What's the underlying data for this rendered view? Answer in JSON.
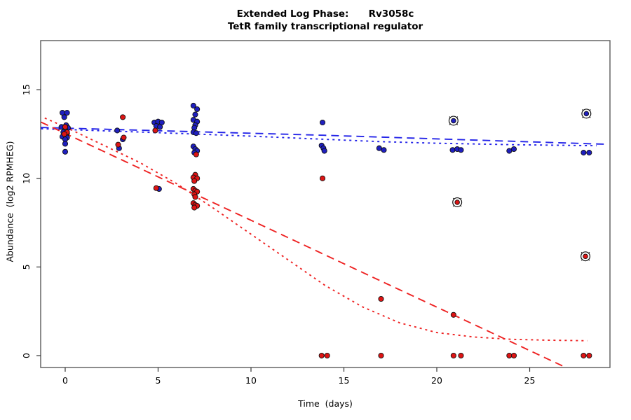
{
  "title": {
    "line1": "Extended Log Phase:      Rv3058c",
    "line2": "TetR family transcriptional regulator"
  },
  "chart_data": {
    "type": "scatter",
    "title": "Extended Log Phase:      Rv3058c",
    "subtitle": "TetR family transcriptional regulator",
    "xlabel": "Time  (days)",
    "ylabel": "Abundance  (log2 RPMHEG)",
    "xlim": [
      -1.32,
      29.32
    ],
    "ylim": [
      -0.67,
      17.77
    ],
    "xticks": [
      0,
      5,
      10,
      15,
      20,
      25
    ],
    "yticks": [
      0,
      5,
      10,
      15
    ],
    "grid": false,
    "legend": "none",
    "colors": {
      "blue_point": "#1f1fbf",
      "red_point": "#dd1414",
      "blue_line": "#2424e8",
      "red_line": "#ee2222",
      "marker_edge": "#111111",
      "box": "#5a5a5a",
      "tick": "#333333",
      "text": "#000000"
    },
    "series": [
      {
        "name": "blue-abundance",
        "marker": "filled-circle",
        "color": "#1f1fbf",
        "points": [
          [
            -0.15,
            13.7
          ],
          [
            0.1,
            13.7
          ],
          [
            -0.05,
            13.45
          ],
          [
            0.05,
            13.0
          ],
          [
            -0.2,
            12.9
          ],
          [
            0.15,
            12.85
          ],
          [
            0,
            12.75
          ],
          [
            -0.1,
            12.6
          ],
          [
            0.1,
            12.55
          ],
          [
            0,
            12.45
          ],
          [
            -0.15,
            12.35
          ],
          [
            0.1,
            12.3
          ],
          [
            0,
            12.2
          ],
          [
            0,
            11.95
          ],
          [
            0,
            11.5
          ],
          [
            2.8,
            12.7
          ],
          [
            3.1,
            12.2
          ],
          [
            2.9,
            11.7
          ],
          [
            4.8,
            13.15
          ],
          [
            5.0,
            13.2
          ],
          [
            5.2,
            13.15
          ],
          [
            4.9,
            12.95
          ],
          [
            5.1,
            12.9
          ],
          [
            5.05,
            9.4
          ],
          [
            6.9,
            14.1
          ],
          [
            7.1,
            13.9
          ],
          [
            7.0,
            13.6
          ],
          [
            6.9,
            13.3
          ],
          [
            7.1,
            13.2
          ],
          [
            7.0,
            13.0
          ],
          [
            6.95,
            12.85
          ],
          [
            6.9,
            12.6
          ],
          [
            7.05,
            12.55
          ],
          [
            6.9,
            11.8
          ],
          [
            7.0,
            11.65
          ],
          [
            7.1,
            11.55
          ],
          [
            6.95,
            11.45
          ],
          [
            13.85,
            13.15
          ],
          [
            13.8,
            11.85
          ],
          [
            13.9,
            11.7
          ],
          [
            13.95,
            11.55
          ],
          [
            16.9,
            11.7
          ],
          [
            17.15,
            11.6
          ],
          [
            20.85,
            11.6
          ],
          [
            21.1,
            11.65
          ],
          [
            21.3,
            11.6
          ],
          [
            23.9,
            11.55
          ],
          [
            24.15,
            11.65
          ],
          [
            27.9,
            11.45
          ],
          [
            28.2,
            11.45
          ]
        ]
      },
      {
        "name": "red-abundance",
        "marker": "filled-circle",
        "color": "#dd1414",
        "points": [
          [
            0,
            12.9
          ],
          [
            0.1,
            12.6
          ],
          [
            -0.05,
            12.5
          ],
          [
            3.1,
            13.45
          ],
          [
            3.15,
            12.3
          ],
          [
            2.85,
            11.9
          ],
          [
            4.85,
            12.7
          ],
          [
            4.9,
            9.45
          ],
          [
            7.05,
            11.35
          ],
          [
            7.0,
            10.2
          ],
          [
            6.9,
            10.05
          ],
          [
            7.1,
            10.0
          ],
          [
            6.95,
            9.85
          ],
          [
            6.9,
            9.4
          ],
          [
            7.0,
            9.3
          ],
          [
            7.1,
            9.25
          ],
          [
            6.95,
            9.1
          ],
          [
            7.0,
            8.95
          ],
          [
            6.9,
            8.6
          ],
          [
            7.0,
            8.5
          ],
          [
            7.1,
            8.45
          ],
          [
            6.95,
            8.35
          ],
          [
            13.85,
            10.0
          ],
          [
            13.8,
            0
          ],
          [
            14.1,
            0
          ],
          [
            17.0,
            3.2
          ],
          [
            17.0,
            0
          ],
          [
            20.9,
            2.3
          ],
          [
            20.9,
            0
          ],
          [
            21.3,
            0
          ],
          [
            23.9,
            0
          ],
          [
            24.15,
            0
          ],
          [
            27.9,
            0
          ],
          [
            28.2,
            0
          ]
        ]
      },
      {
        "name": "blue-flagged",
        "marker": "circled-dot",
        "color": "#1f1fbf",
        "points": [
          [
            20.9,
            13.25
          ],
          [
            28.05,
            13.65
          ]
        ]
      },
      {
        "name": "red-flagged",
        "marker": "circled-dot",
        "color": "#dd1414",
        "points": [
          [
            21.1,
            8.65
          ],
          [
            28.0,
            5.6
          ]
        ]
      }
    ],
    "fit_lines": [
      {
        "name": "blue-linear-fit",
        "color": "#2424e8",
        "dash": "longdash",
        "points": [
          [
            -1.3,
            12.87
          ],
          [
            13.9,
            12.43
          ],
          [
            29.2,
            11.92
          ]
        ]
      },
      {
        "name": "blue-smooth-fit",
        "color": "#2424e8",
        "dash": "dotted",
        "points": [
          [
            -1.3,
            12.8
          ],
          [
            3,
            12.65
          ],
          [
            7,
            12.5
          ],
          [
            10,
            12.38
          ],
          [
            14,
            12.2
          ],
          [
            17,
            12.07
          ],
          [
            20,
            11.98
          ],
          [
            24,
            11.9
          ],
          [
            28.6,
            11.84
          ]
        ]
      },
      {
        "name": "red-linear-fit",
        "color": "#ee2222",
        "dash": "longdash",
        "points": [
          [
            -1.3,
            13.17
          ],
          [
            26.95,
            -0.67
          ]
        ]
      },
      {
        "name": "red-smooth-fit",
        "color": "#ee2222",
        "dash": "dotted",
        "points": [
          [
            -1.1,
            13.4
          ],
          [
            0,
            12.9
          ],
          [
            2,
            11.9
          ],
          [
            4,
            10.9
          ],
          [
            6,
            9.7
          ],
          [
            8,
            8.3
          ],
          [
            10,
            6.85
          ],
          [
            12,
            5.4
          ],
          [
            14,
            3.95
          ],
          [
            16,
            2.75
          ],
          [
            18,
            1.85
          ],
          [
            20,
            1.3
          ],
          [
            22,
            1.05
          ],
          [
            24,
            0.92
          ],
          [
            26,
            0.87
          ],
          [
            28.1,
            0.84
          ]
        ]
      }
    ]
  }
}
